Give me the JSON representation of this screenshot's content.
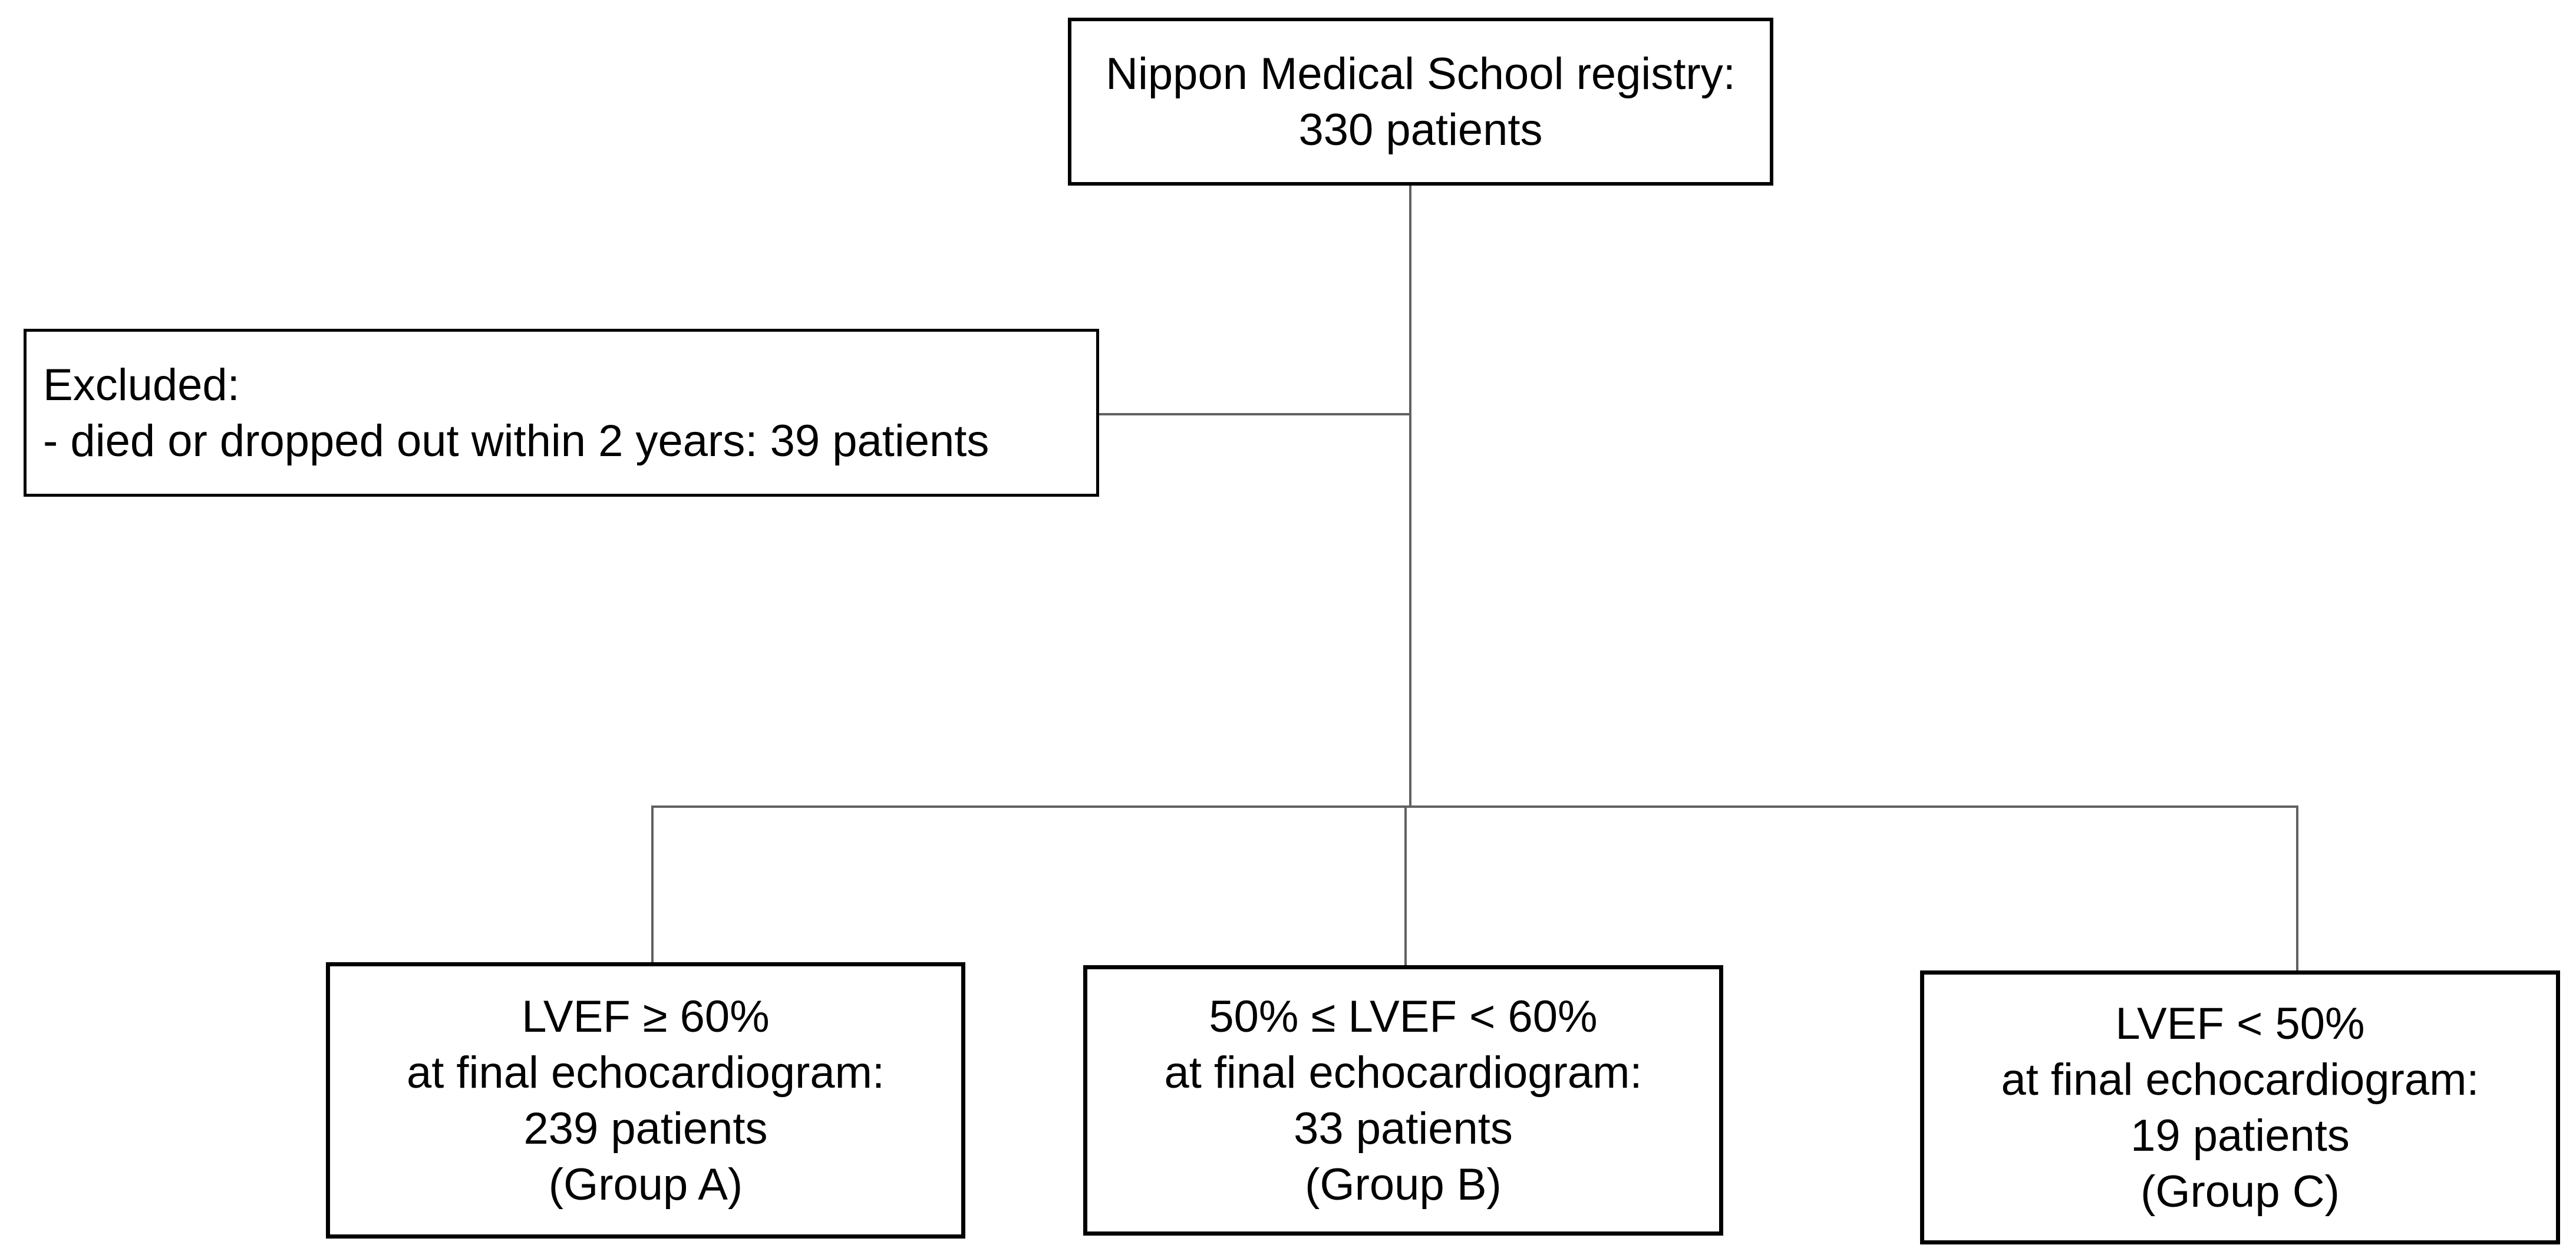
{
  "diagram": {
    "type": "patient-flow-diagram",
    "boxes": {
      "registry": {
        "lines": [
          "Nippon Medical School registry:",
          "330 patients"
        ]
      },
      "excluded": {
        "lines": [
          "Excluded:",
          "- died or dropped out within 2 years: 39 patients"
        ]
      },
      "group_a": {
        "lines": [
          "LVEF ≥ 60%",
          "at final echocardiogram:",
          "239 patients",
          "(Group A)"
        ]
      },
      "group_b": {
        "lines": [
          "50% ≤ LVEF < 60%",
          "at final echocardiogram:",
          "33 patients",
          "(Group B)"
        ]
      },
      "group_c": {
        "lines": [
          "LVEF < 50%",
          "at final echocardiogram:",
          "19 patients",
          "(Group C)"
        ]
      }
    },
    "colors": {
      "background": "#ffffff",
      "box_border": "#000000",
      "text": "#000000",
      "connector": "#616161"
    }
  }
}
